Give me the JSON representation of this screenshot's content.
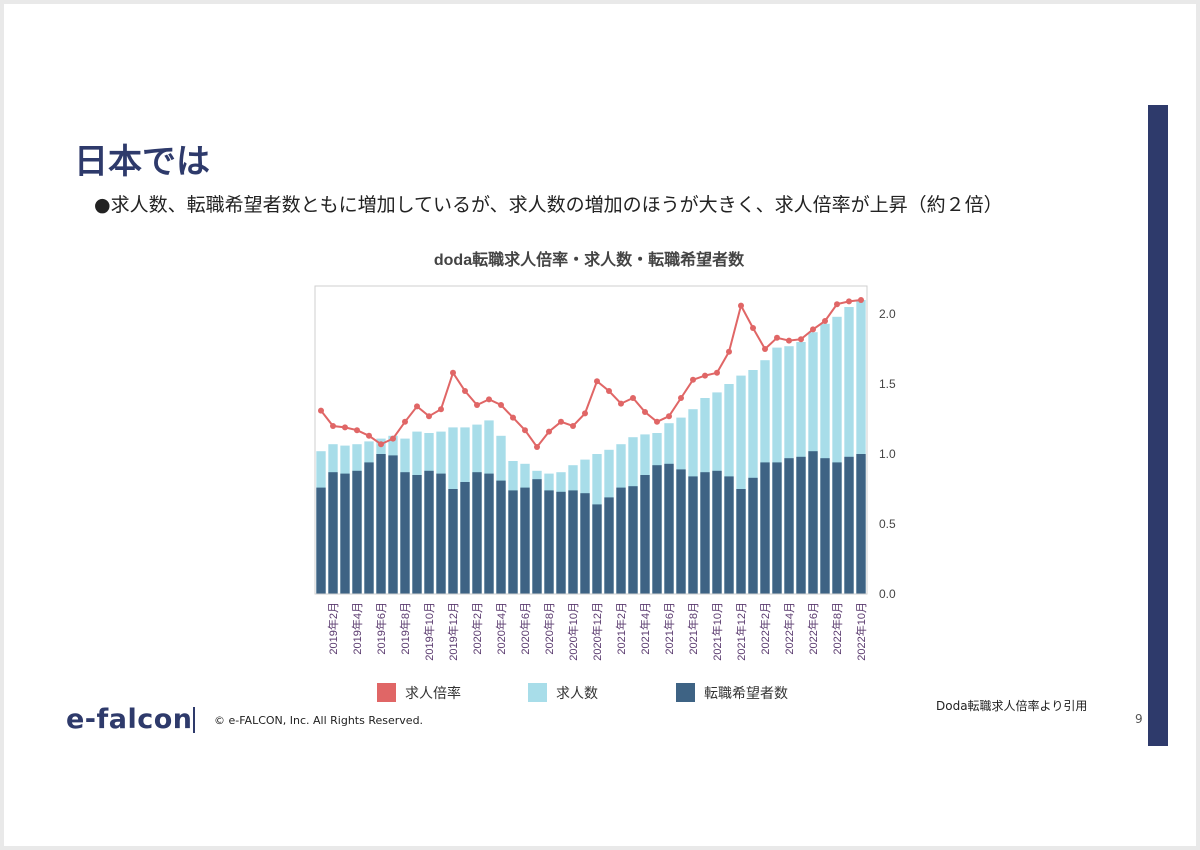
{
  "slide": {
    "title": "日本では",
    "subtitle": "●求人数、転職希望者数ともに増加しているが、求人数の増加のほうが大きく、求人倍率が上昇（約２倍）",
    "source_note": "Doda転職求人倍率より引用",
    "copyright": "© e-FALCON, Inc. All Rights Reserved.",
    "logo_text": "e-falcon",
    "page_number": "9",
    "accent_color": "#2e3a6b"
  },
  "chart_data": {
    "type": "bar",
    "title": "doda転職求人倍率・求人数・転職希望者数",
    "right_axis_ticks": [
      "0.0",
      "0.5",
      "1.0",
      "1.5",
      "2.0"
    ],
    "ylim": [
      0,
      2.2
    ],
    "grid": false,
    "legend_position": "bottom",
    "x_tick_labels": [
      "2019年2月",
      "2019年4月",
      "2019年6月",
      "2019年8月",
      "2019年10月",
      "2019年12月",
      "2020年2月",
      "2020年4月",
      "2020年6月",
      "2020年8月",
      "2020年10月",
      "2020年12月",
      "2021年2月",
      "2021年4月",
      "2021年6月",
      "2021年8月",
      "2021年10月",
      "2021年12月",
      "2022年2月",
      "2022年4月",
      "2022年6月",
      "2022年8月",
      "2022年10月"
    ],
    "months_start": "2019年1月",
    "series": [
      {
        "name": "求人倍率",
        "kind": "line",
        "color": "#e06666",
        "values": [
          1.31,
          1.2,
          1.19,
          1.17,
          1.13,
          1.07,
          1.11,
          1.23,
          1.34,
          1.27,
          1.32,
          1.58,
          1.45,
          1.35,
          1.39,
          1.35,
          1.26,
          1.17,
          1.05,
          1.16,
          1.23,
          1.2,
          1.29,
          1.52,
          1.45,
          1.36,
          1.4,
          1.3,
          1.23,
          1.27,
          1.4,
          1.53,
          1.56,
          1.58,
          1.73,
          2.06,
          1.9,
          1.75,
          1.83,
          1.81,
          1.82,
          1.89,
          1.95,
          2.07,
          2.09,
          2.1
        ]
      },
      {
        "name": "求人数",
        "kind": "bar",
        "color": "#a8dde9",
        "values": [
          1.02,
          1.07,
          1.06,
          1.07,
          1.09,
          1.11,
          1.13,
          1.11,
          1.16,
          1.15,
          1.16,
          1.19,
          1.19,
          1.21,
          1.24,
          1.13,
          0.95,
          0.93,
          0.88,
          0.86,
          0.87,
          0.92,
          0.96,
          1.0,
          1.03,
          1.07,
          1.12,
          1.14,
          1.15,
          1.22,
          1.26,
          1.32,
          1.4,
          1.44,
          1.5,
          1.56,
          1.6,
          1.67,
          1.76,
          1.77,
          1.8,
          1.87,
          1.93,
          1.98,
          2.05,
          2.1
        ]
      },
      {
        "name": "転職希望者数",
        "kind": "bar",
        "color": "#3e6384",
        "values": [
          0.76,
          0.87,
          0.86,
          0.88,
          0.94,
          1.0,
          0.99,
          0.87,
          0.85,
          0.88,
          0.86,
          0.75,
          0.8,
          0.87,
          0.86,
          0.81,
          0.74,
          0.76,
          0.82,
          0.74,
          0.73,
          0.74,
          0.72,
          0.64,
          0.69,
          0.76,
          0.77,
          0.85,
          0.92,
          0.93,
          0.89,
          0.84,
          0.87,
          0.88,
          0.84,
          0.75,
          0.83,
          0.94,
          0.94,
          0.97,
          0.98,
          1.02,
          0.97,
          0.94,
          0.98,
          1.0
        ]
      }
    ]
  }
}
